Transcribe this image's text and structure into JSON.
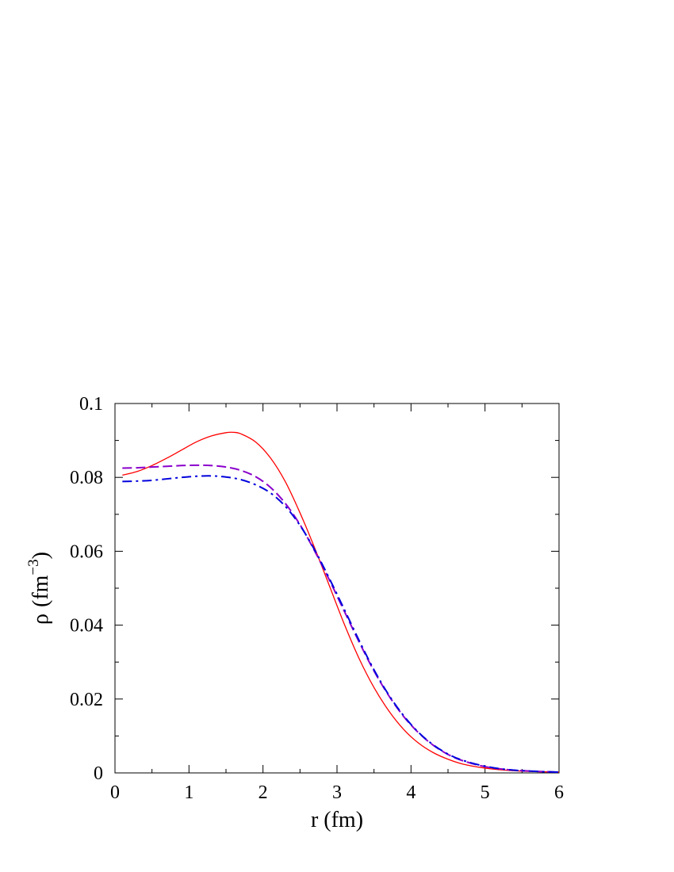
{
  "chart_data": {
    "type": "line",
    "title": "",
    "xlabel": "r (fm)",
    "ylabel": {
      "symbol": "ρ",
      "unit_prefix": "(fm",
      "exponent": "−3",
      "unit_suffix": ")"
    },
    "xlim": [
      0,
      6
    ],
    "ylim": [
      0,
      0.1
    ],
    "x_ticks": [
      "0",
      "1",
      "2",
      "3",
      "4",
      "5",
      "6"
    ],
    "y_ticks": [
      "0",
      "0.02",
      "0.04",
      "0.06",
      "0.08",
      "0.1"
    ],
    "grid": false,
    "legend": "none",
    "series": [
      {
        "style": "solid",
        "color": "#ff0000",
        "x": [
          0.1,
          0.3,
          0.5,
          0.7,
          0.9,
          1.1,
          1.3,
          1.5,
          1.6,
          1.7,
          1.9,
          2.1,
          2.3,
          2.5,
          2.7,
          2.9,
          3.1,
          3.3,
          3.5,
          3.7,
          3.9,
          4.1,
          4.3,
          4.5,
          4.7,
          5.0,
          5.3,
          5.6,
          6.0
        ],
        "y": [
          0.0806,
          0.0816,
          0.0832,
          0.0852,
          0.0874,
          0.0896,
          0.0912,
          0.0921,
          0.0922,
          0.0918,
          0.0896,
          0.0853,
          0.0789,
          0.0704,
          0.0608,
          0.0505,
          0.0402,
          0.0309,
          0.0231,
          0.0168,
          0.0118,
          0.0081,
          0.0055,
          0.0037,
          0.0024,
          0.0013,
          0.0007,
          0.0004,
          0.0002
        ]
      },
      {
        "style": "dashed",
        "color": "#8b00cc",
        "x": [
          0.1,
          0.3,
          0.5,
          0.7,
          0.9,
          1.1,
          1.3,
          1.5,
          1.7,
          1.9,
          2.1,
          2.3,
          2.5,
          2.7,
          2.9,
          3.1,
          3.3,
          3.5,
          3.7,
          3.9,
          4.1,
          4.3,
          4.5,
          4.7,
          5.0,
          5.3,
          5.6,
          6.0
        ],
        "y": [
          0.0825,
          0.0826,
          0.0828,
          0.083,
          0.0832,
          0.0833,
          0.0832,
          0.0828,
          0.0819,
          0.0802,
          0.0773,
          0.073,
          0.0672,
          0.06,
          0.0521,
          0.0437,
          0.0354,
          0.0276,
          0.0209,
          0.0153,
          0.0109,
          0.0075,
          0.005,
          0.0033,
          0.0017,
          0.0009,
          0.0005,
          0.0002
        ]
      },
      {
        "style": "dash-dot",
        "color": "#0000dd",
        "x": [
          0.1,
          0.3,
          0.5,
          0.7,
          0.9,
          1.1,
          1.3,
          1.5,
          1.7,
          1.9,
          2.1,
          2.3,
          2.5,
          2.7,
          2.9,
          3.1,
          3.3,
          3.5,
          3.7,
          3.9,
          4.1,
          4.3,
          4.5,
          4.7,
          5.0,
          5.3,
          5.6,
          6.0
        ],
        "y": [
          0.0789,
          0.079,
          0.0792,
          0.0796,
          0.08,
          0.0803,
          0.0804,
          0.0801,
          0.0794,
          0.078,
          0.0758,
          0.0722,
          0.067,
          0.0603,
          0.0525,
          0.0442,
          0.0358,
          0.0279,
          0.0211,
          0.0155,
          0.011,
          0.0076,
          0.0051,
          0.0034,
          0.0018,
          0.0009,
          0.0005,
          0.0002
        ]
      }
    ]
  }
}
